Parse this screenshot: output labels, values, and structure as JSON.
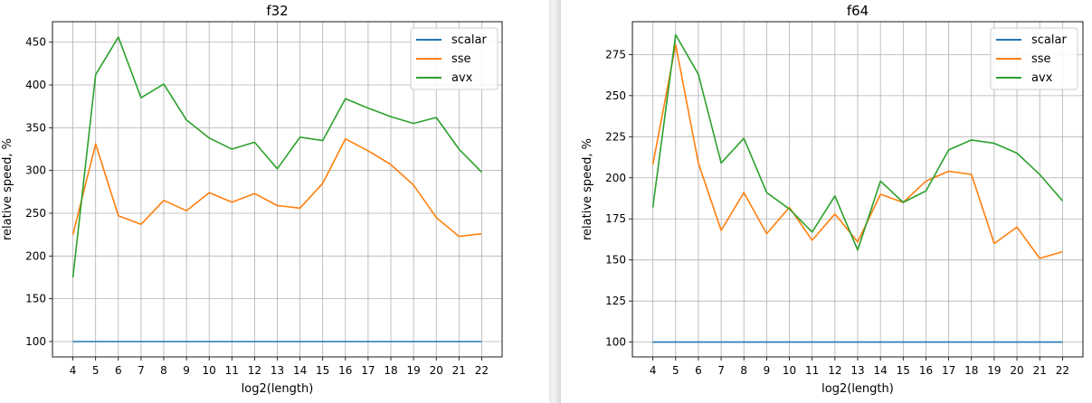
{
  "chart_data": [
    {
      "type": "line",
      "title": "f32",
      "xlabel": "log2(length)",
      "ylabel": "relative speed, %",
      "x": [
        4,
        5,
        6,
        7,
        8,
        9,
        10,
        11,
        12,
        13,
        14,
        15,
        16,
        17,
        18,
        19,
        20,
        21,
        22
      ],
      "yticks": [
        100,
        150,
        200,
        250,
        300,
        350,
        400,
        450
      ],
      "ylim": [
        82,
        474
      ],
      "grid": true,
      "legend_position": "top-right",
      "series": [
        {
          "name": "scalar",
          "color": "#1f77b4",
          "values": [
            100,
            100,
            100,
            100,
            100,
            100,
            100,
            100,
            100,
            100,
            100,
            100,
            100,
            100,
            100,
            100,
            100,
            100,
            100
          ]
        },
        {
          "name": "sse",
          "color": "#ff7f0e",
          "values": [
            225,
            331,
            247,
            237,
            265,
            253,
            274,
            263,
            273,
            259,
            256,
            285,
            337,
            323,
            307,
            283,
            245,
            223,
            226
          ]
        },
        {
          "name": "avx",
          "color": "#2ca02c",
          "values": [
            175,
            412,
            456,
            385,
            401,
            359,
            338,
            325,
            333,
            302,
            339,
            335,
            384,
            373,
            363,
            355,
            362,
            325,
            298
          ]
        }
      ]
    },
    {
      "type": "line",
      "title": "f64",
      "xlabel": "log2(length)",
      "ylabel": "relative speed, %",
      "x": [
        4,
        5,
        6,
        7,
        8,
        9,
        10,
        11,
        12,
        13,
        14,
        15,
        16,
        17,
        18,
        19,
        20,
        21,
        22
      ],
      "yticks": [
        100,
        125,
        150,
        175,
        200,
        225,
        250,
        275
      ],
      "ylim": [
        91,
        295
      ],
      "grid": true,
      "legend_position": "top-right",
      "series": [
        {
          "name": "scalar",
          "color": "#1f77b4",
          "values": [
            100,
            100,
            100,
            100,
            100,
            100,
            100,
            100,
            100,
            100,
            100,
            100,
            100,
            100,
            100,
            100,
            100,
            100,
            100
          ]
        },
        {
          "name": "sse",
          "color": "#ff7f0e",
          "values": [
            208,
            281,
            209,
            168,
            191,
            166,
            182,
            162,
            178,
            161,
            190,
            185,
            198,
            204,
            202,
            160,
            170,
            151,
            155
          ]
        },
        {
          "name": "avx",
          "color": "#2ca02c",
          "values": [
            182,
            287,
            263,
            209,
            224,
            191,
            181,
            167,
            189,
            156,
            198,
            185,
            192,
            217,
            223,
            221,
            215,
            202,
            186
          ]
        }
      ]
    }
  ]
}
